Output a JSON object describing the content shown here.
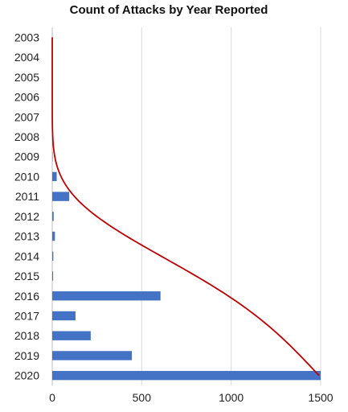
{
  "chart_data": {
    "type": "bar",
    "orientation": "horizontal",
    "title": "Count of Attacks by Year Reported",
    "xlabel": "",
    "ylabel": "",
    "categories": [
      "2003",
      "2004",
      "2005",
      "2006",
      "2007",
      "2008",
      "2009",
      "2010",
      "2011",
      "2012",
      "2013",
      "2014",
      "2015",
      "2016",
      "2017",
      "2018",
      "2019",
      "2020"
    ],
    "series": [
      {
        "values": [
          1,
          0,
          0,
          0,
          1,
          1,
          2,
          25,
          95,
          8,
          15,
          6,
          5,
          605,
          130,
          215,
          445,
          1505
        ],
        "color": "#4472C4"
      }
    ],
    "trendline": {
      "type": "power",
      "color": "#C00000"
    },
    "xlim": [
      0,
      1500
    ],
    "xticks": [
      "0",
      "500",
      "1000",
      "1500"
    ],
    "grid": "vertical",
    "legend": "none"
  }
}
